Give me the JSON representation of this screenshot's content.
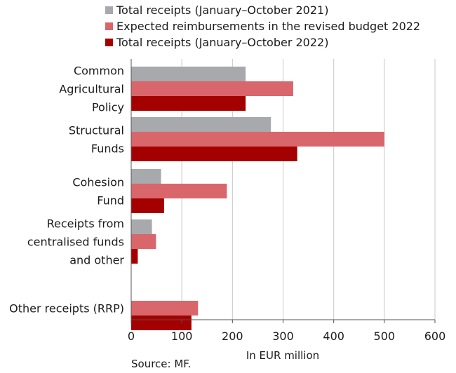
{
  "chart_data": {
    "type": "bar",
    "orientation": "horizontal",
    "categories": [
      [
        "Common",
        "Agricultural",
        "Policy"
      ],
      [
        "Structural",
        "Funds"
      ],
      [
        "Cohesion",
        "Fund"
      ],
      [
        "Receipts from",
        "centralised funds",
        "and other"
      ],
      [
        "Other receipts (RRP)"
      ]
    ],
    "series": [
      {
        "name": "Total receipts (January–October 2021)",
        "color": "#a7a9ac",
        "values": [
          226,
          276,
          59,
          41,
          null
        ]
      },
      {
        "name": "Expected reimbursements in the revised budget 2022",
        "color": "#d9666b",
        "values": [
          320,
          500,
          189,
          49,
          132
        ]
      },
      {
        "name": "Total receipts (January–October 2022)",
        "color": "#a50000",
        "values": [
          226,
          328,
          65,
          13,
          119
        ]
      }
    ],
    "xlim": [
      0,
      600
    ],
    "xticks": [
      0,
      100,
      200,
      300,
      400,
      500,
      600
    ],
    "xlabel": "In EUR million",
    "grid": "vertical",
    "legend_position": "top"
  },
  "source": "Source: MF."
}
